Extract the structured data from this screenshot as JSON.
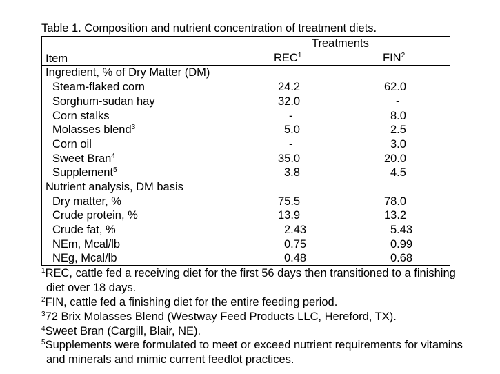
{
  "title": "Table 1.  Composition and nutrient concentration of treatment diets.",
  "treatments_header": "Treatments",
  "item_header": "Item",
  "col_rec": {
    "label": "REC",
    "sup": "1"
  },
  "col_fin": {
    "label": "FIN",
    "sup": "2"
  },
  "section_ingredients": "Ingredient, % of Dry Matter (DM)",
  "ingredients": [
    {
      "name": "Steam-flaked corn",
      "sup": "",
      "rec": "24.2",
      "fin": "62.0"
    },
    {
      "name": "Sorghum-sudan hay",
      "sup": "",
      "rec": "32.0",
      "fin": "-"
    },
    {
      "name": "Corn stalks",
      "sup": "",
      "rec": "-",
      "fin": "8.0"
    },
    {
      "name": "Molasses blend",
      "sup": "3",
      "rec": "5.0",
      "fin": "2.5"
    },
    {
      "name": "Corn oil",
      "sup": "",
      "rec": "-",
      "fin": "3.0"
    },
    {
      "name": "Sweet Bran",
      "sup": "4",
      "rec": "35.0",
      "fin": "20.0"
    },
    {
      "name": "Supplement",
      "sup": "5",
      "rec": "3.8",
      "fin": "4.5"
    }
  ],
  "section_nutrients": "Nutrient analysis, DM basis",
  "nutrients": [
    {
      "name": "Dry matter, %",
      "rec": "75.5",
      "fin": "78.0"
    },
    {
      "name": "Crude protein, %",
      "rec": "13.9",
      "fin": "13.2"
    },
    {
      "name": "Crude fat, %",
      "rec": "2.43",
      "fin": "5.43"
    },
    {
      "name": "NEm, Mcal/lb",
      "rec": "0.75",
      "fin": "0.99"
    },
    {
      "name": "NEg, Mcal/lb",
      "rec": "0.48",
      "fin": "0.68"
    }
  ],
  "footnotes": [
    {
      "mark": "1",
      "text": "REC, cattle fed a receiving diet for the first 56 days then transitioned to a finishing diet over 18 days."
    },
    {
      "mark": "2",
      "text": "FIN, cattle fed a finishing diet for the entire feeding period."
    },
    {
      "mark": "3",
      "text": "72 Brix Molasses Blend (Westway Feed Products LLC, Hereford, TX)."
    },
    {
      "mark": "4",
      "text": "Sweet Bran (Cargill, Blair, NE)."
    },
    {
      "mark": "5",
      "text": "Supplements were formulated to meet or exceed nutrient requirements for vitamins and minerals and mimic current feedlot practices."
    }
  ]
}
